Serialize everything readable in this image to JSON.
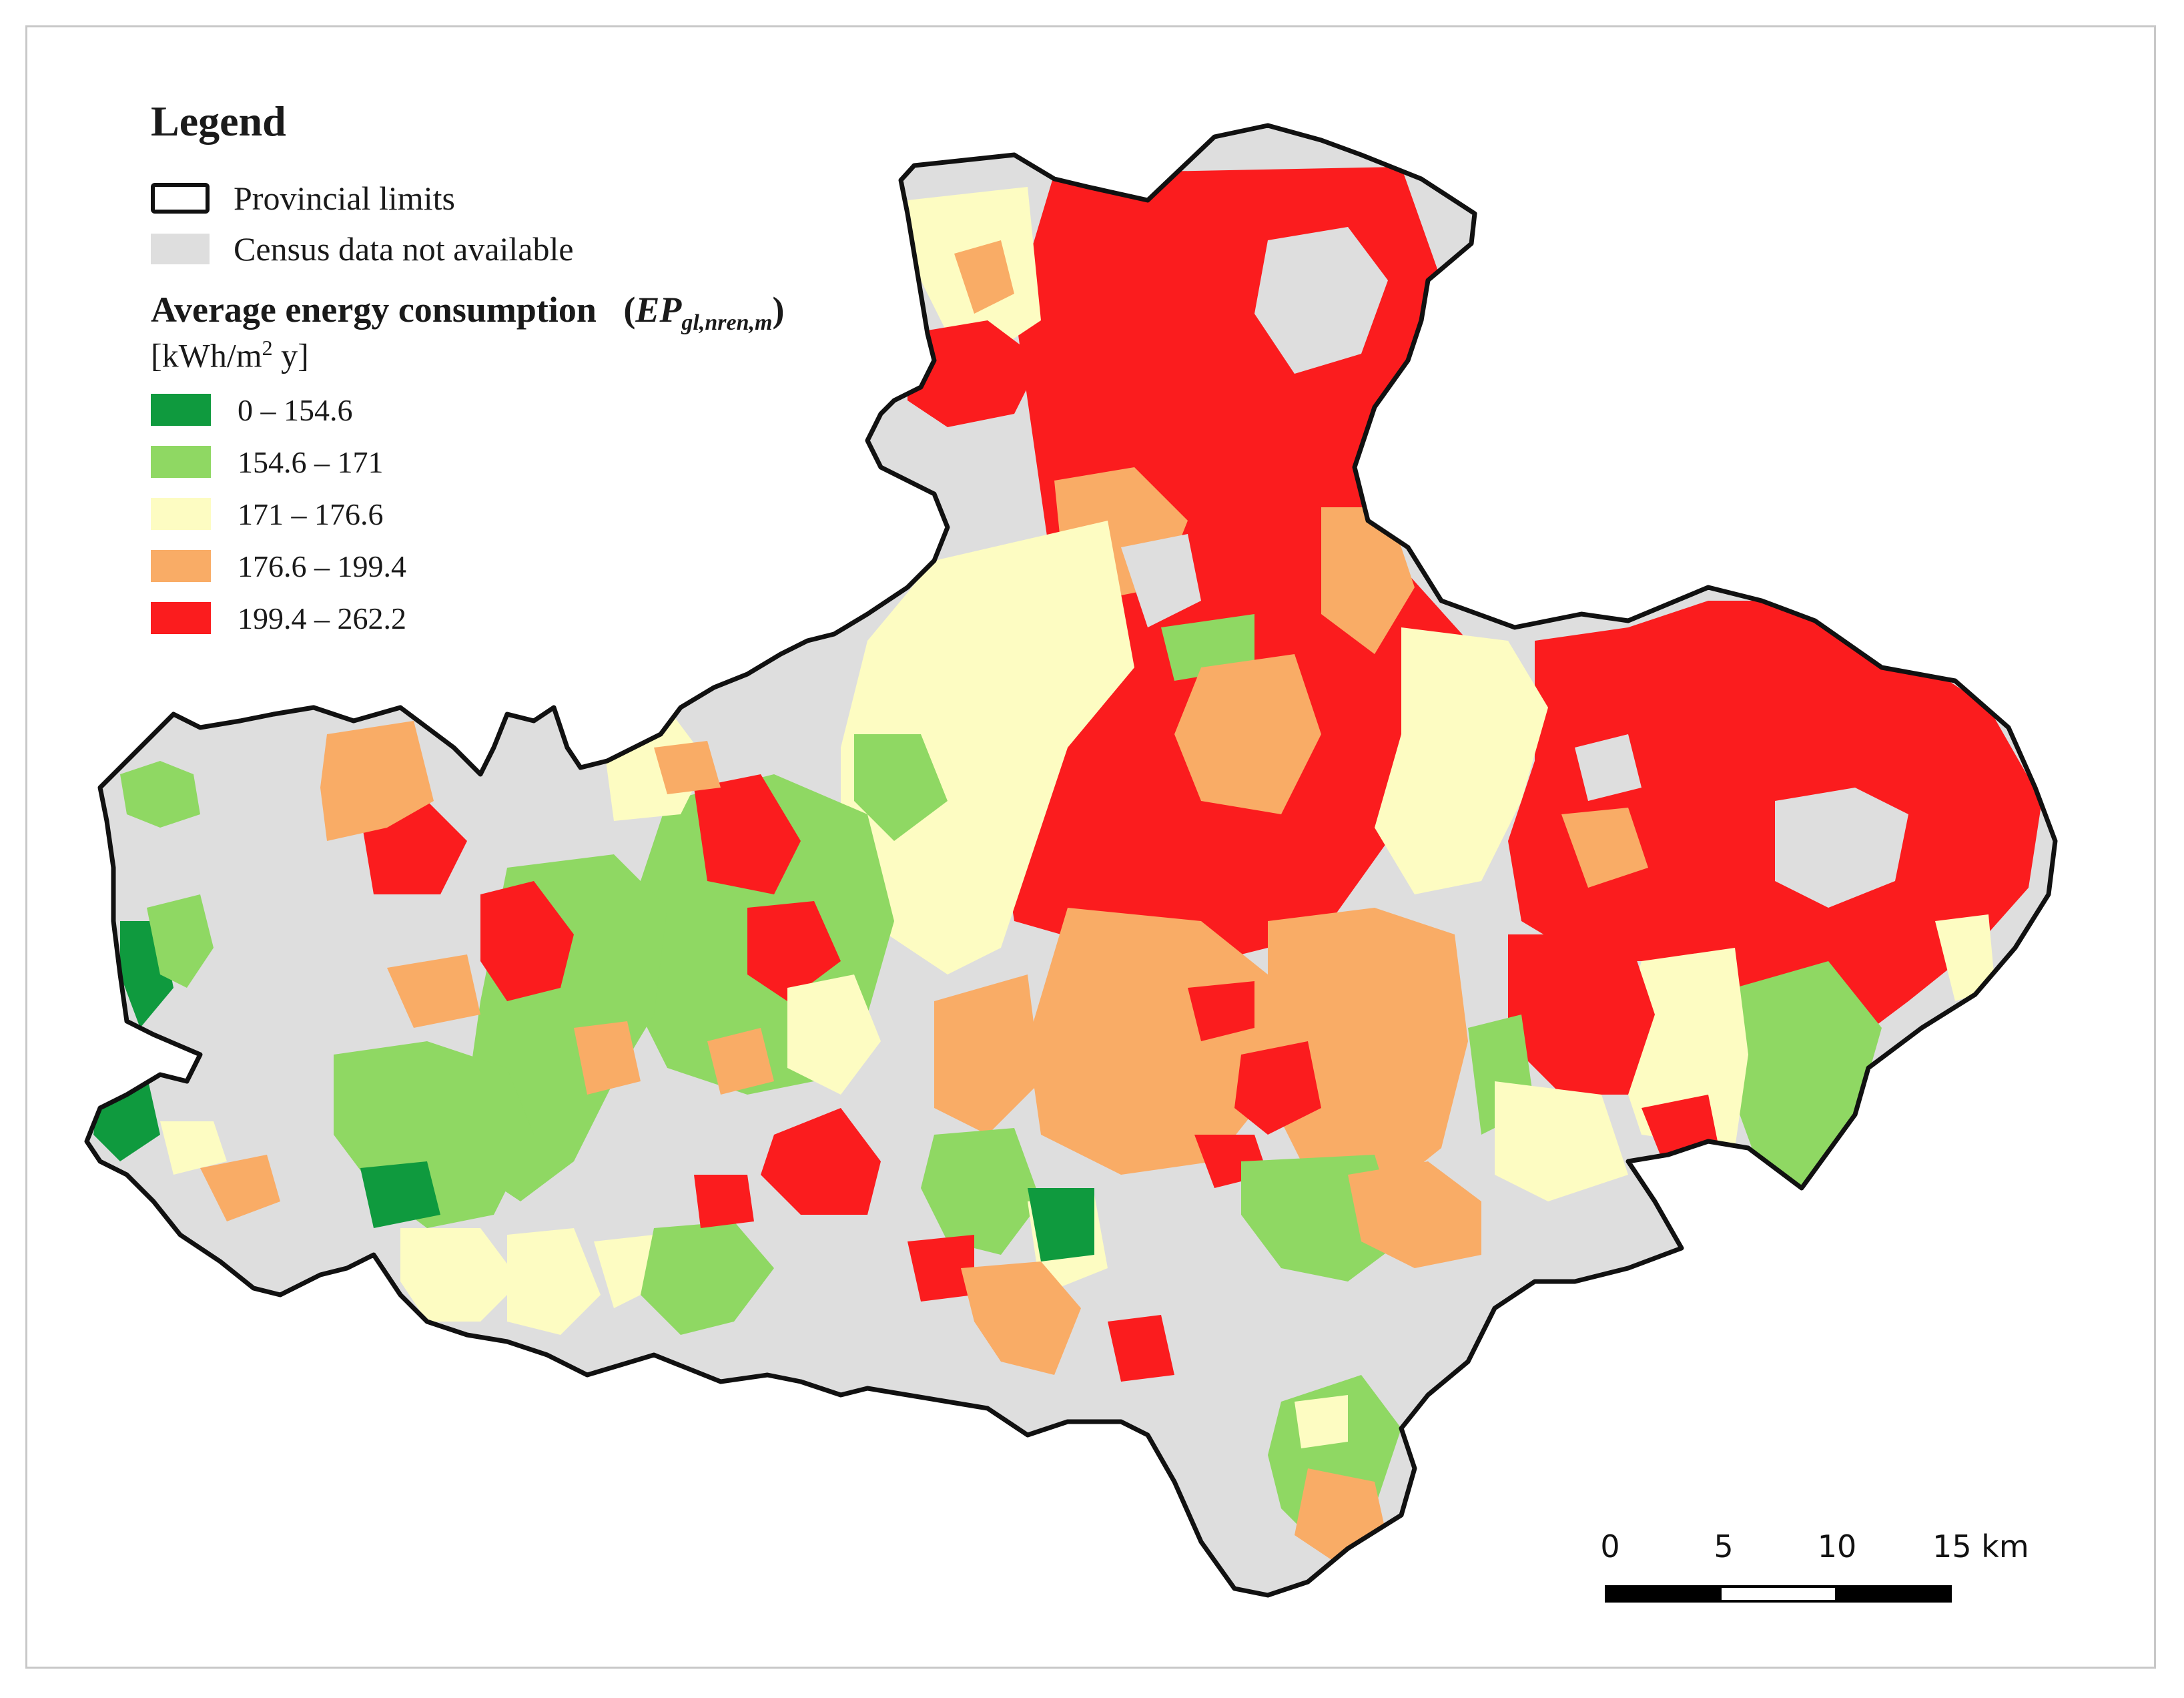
{
  "legend": {
    "title": "Legend",
    "provincial_limits": "Provincial limits",
    "no_data": "Census data not available",
    "consumption_title": "Average energy consumption",
    "ep_symbol": "EP",
    "ep_subscript": "gl,nren,m",
    "unit_prefix": "[kWh/m",
    "unit_sup": "2",
    "unit_suffix": " y]",
    "classes": [
      {
        "label": "0 – 154.6",
        "color": "#0f9a3e"
      },
      {
        "label": "154.6 – 171",
        "color": "#8fd863"
      },
      {
        "label": "171 – 176.6",
        "color": "#fdfcc2"
      },
      {
        "label": "176.6 – 199.4",
        "color": "#f9ac66"
      },
      {
        "label": "199.4 – 262.2",
        "color": "#fb1c1e"
      }
    ]
  },
  "colors": {
    "no_data": "#dedede",
    "boundary": "#111111"
  },
  "scale_bar": {
    "labels": [
      "0",
      "5",
      "10",
      "15 km"
    ]
  }
}
